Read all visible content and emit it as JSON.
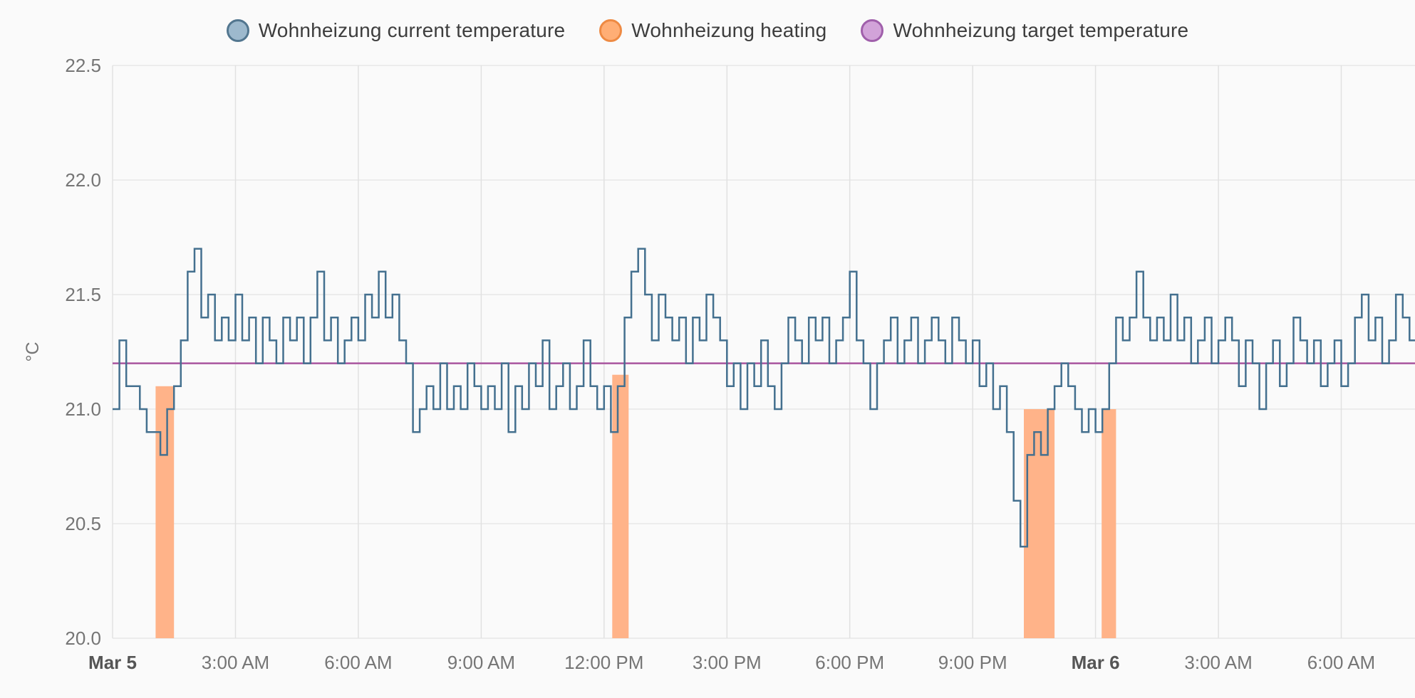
{
  "page": {
    "background": "#fafafa"
  },
  "legend": {
    "position": "top",
    "items": [
      {
        "series": "current",
        "label": "Wohnheizung current temperature",
        "fill": "#9db9cd",
        "stroke": "#52768f"
      },
      {
        "series": "heating",
        "label": "Wohnheizung heating",
        "fill": "#ffae75",
        "stroke": "#ee8a43"
      },
      {
        "series": "target",
        "label": "Wohnheizung target temperature",
        "fill": "#d2a3d9",
        "stroke": "#a05fab"
      }
    ]
  },
  "chart_data": {
    "type": "line",
    "title": "",
    "xlabel": "",
    "ylabel": "°C",
    "ylim": [
      20.0,
      22.5
    ],
    "x_hours_range": [
      0,
      31.8
    ],
    "x_epoch_note": "hours since Mar 5 12:00 AM",
    "axis_color": "#757575",
    "axis_bold_color": "#555555",
    "grid": {
      "vertical": true,
      "horizontal": true,
      "v_color": "#e1e1e1",
      "h_color": "#e7e7e7"
    },
    "y_ticks": [
      {
        "v": 22.5,
        "label": "22.5"
      },
      {
        "v": 22.0,
        "label": "22.0"
      },
      {
        "v": 21.5,
        "label": "21.5"
      },
      {
        "v": 21.0,
        "label": "21.0"
      },
      {
        "v": 20.5,
        "label": "20.5"
      },
      {
        "v": 20.0,
        "label": "20.0"
      }
    ],
    "x_ticks": [
      {
        "t": 0,
        "label": "Mar 5",
        "bold": true
      },
      {
        "t": 3,
        "label": "3:00 AM"
      },
      {
        "t": 6,
        "label": "6:00 AM"
      },
      {
        "t": 9,
        "label": "9:00 AM"
      },
      {
        "t": 12,
        "label": "12:00 PM"
      },
      {
        "t": 15,
        "label": "3:00 PM"
      },
      {
        "t": 18,
        "label": "6:00 PM"
      },
      {
        "t": 21,
        "label": "9:00 PM"
      },
      {
        "t": 24,
        "label": "Mar 6",
        "bold": true
      },
      {
        "t": 27,
        "label": "3:00 AM"
      },
      {
        "t": 30,
        "label": "6:00 AM"
      }
    ],
    "series": [
      {
        "name": "Wohnheizung heating",
        "type": "bars",
        "color": "#ffb389",
        "base": 20.0,
        "intervals": [
          {
            "start": 1.05,
            "end": 1.5,
            "top": 21.1
          },
          {
            "start": 12.2,
            "end": 12.6,
            "top": 21.15
          },
          {
            "start": 22.25,
            "end": 23.0,
            "top": 21.0
          },
          {
            "start": 24.15,
            "end": 24.5,
            "top": 21.0
          }
        ]
      },
      {
        "name": "Wohnheizung target temperature",
        "type": "line",
        "color": "#a9559f",
        "points": [
          [
            0,
            21.2
          ],
          [
            31.8,
            21.2
          ]
        ]
      },
      {
        "name": "Wohnheizung current temperature",
        "type": "step",
        "color": "#44708f",
        "t0": 0,
        "dt_hours": 0.166667,
        "values": [
          21.0,
          21.3,
          21.1,
          21.1,
          21.0,
          20.9,
          20.9,
          20.8,
          21.0,
          21.1,
          21.3,
          21.6,
          21.7,
          21.4,
          21.5,
          21.3,
          21.4,
          21.3,
          21.5,
          21.3,
          21.4,
          21.2,
          21.4,
          21.3,
          21.2,
          21.4,
          21.3,
          21.4,
          21.2,
          21.4,
          21.6,
          21.3,
          21.4,
          21.2,
          21.3,
          21.4,
          21.3,
          21.5,
          21.4,
          21.6,
          21.4,
          21.5,
          21.3,
          21.2,
          20.9,
          21.0,
          21.1,
          21.0,
          21.2,
          21.0,
          21.1,
          21.0,
          21.2,
          21.1,
          21.0,
          21.1,
          21.0,
          21.2,
          20.9,
          21.1,
          21.0,
          21.2,
          21.1,
          21.3,
          21.0,
          21.1,
          21.2,
          21.0,
          21.1,
          21.3,
          21.1,
          21.0,
          21.1,
          20.9,
          21.1,
          21.4,
          21.6,
          21.7,
          21.5,
          21.3,
          21.5,
          21.4,
          21.3,
          21.4,
          21.2,
          21.4,
          21.3,
          21.5,
          21.4,
          21.3,
          21.1,
          21.2,
          21.0,
          21.2,
          21.1,
          21.3,
          21.1,
          21.0,
          21.2,
          21.4,
          21.3,
          21.2,
          21.4,
          21.3,
          21.4,
          21.2,
          21.3,
          21.4,
          21.6,
          21.3,
          21.2,
          21.0,
          21.2,
          21.3,
          21.4,
          21.2,
          21.3,
          21.4,
          21.2,
          21.3,
          21.4,
          21.3,
          21.2,
          21.4,
          21.3,
          21.2,
          21.3,
          21.1,
          21.2,
          21.0,
          21.1,
          20.9,
          20.6,
          20.4,
          20.8,
          20.9,
          20.8,
          21.0,
          21.1,
          21.2,
          21.1,
          21.0,
          20.9,
          21.0,
          20.9,
          21.0,
          21.2,
          21.4,
          21.3,
          21.4,
          21.6,
          21.4,
          21.3,
          21.4,
          21.3,
          21.5,
          21.3,
          21.4,
          21.2,
          21.3,
          21.4,
          21.2,
          21.3,
          21.4,
          21.3,
          21.1,
          21.3,
          21.2,
          21.0,
          21.2,
          21.3,
          21.1,
          21.2,
          21.4,
          21.3,
          21.2,
          21.3,
          21.1,
          21.2,
          21.3,
          21.1,
          21.2,
          21.4,
          21.5,
          21.3,
          21.4,
          21.2,
          21.3,
          21.5,
          21.4,
          21.3
        ]
      }
    ]
  }
}
